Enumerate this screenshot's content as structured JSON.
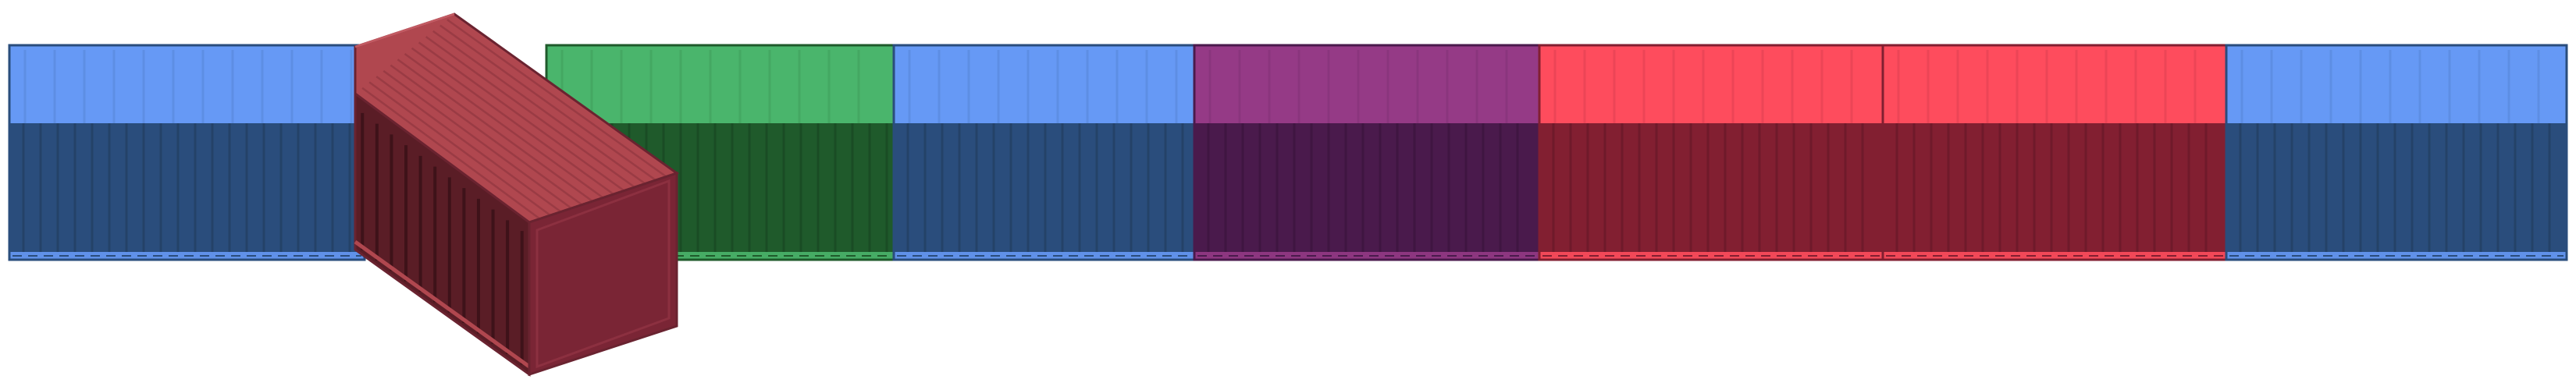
{
  "scene": {
    "containers": [
      {
        "id": "c1",
        "top": "#6699f5",
        "side": "#2a4d7c",
        "rib": "#244268"
      },
      {
        "id": "c2",
        "top": "#4ab56c",
        "side": "#1f5a2b",
        "rib": "#1a4c24"
      },
      {
        "id": "c3",
        "top": "#6699f5",
        "side": "#2a4d7c",
        "rib": "#244268"
      },
      {
        "id": "c4",
        "top": "#953a86",
        "side": "#4a1a4c",
        "rib": "#3f1541"
      },
      {
        "id": "c5",
        "top": "#fe4c5d",
        "side": "#821f31",
        "rib": "#6f1a2a"
      },
      {
        "id": "c6",
        "top": "#fe4c5d",
        "side": "#821f31",
        "rib": "#6f1a2a"
      },
      {
        "id": "c7",
        "top": "#6699f5",
        "side": "#2a4d7c",
        "rib": "#244268"
      }
    ],
    "lifted_container": {
      "top": "#b0474f",
      "side": "#5a1d26",
      "end": "#7a2535",
      "edge": "#6a2330"
    },
    "background": "#ffffff"
  }
}
